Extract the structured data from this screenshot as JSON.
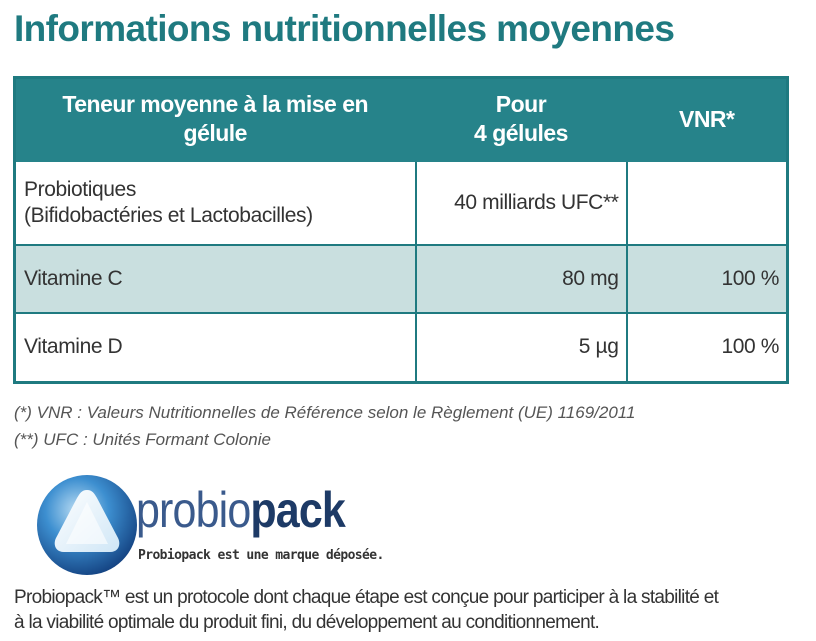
{
  "title": "Informations nutritionnelles moyennes",
  "table": {
    "headers": [
      [
        "Teneur moyenne à la mise en",
        "gélule"
      ],
      [
        "Pour",
        "4 gélules"
      ],
      [
        "VNR*"
      ]
    ],
    "rows": [
      {
        "name_lines": [
          "Probiotiques",
          "(Bifidobactéries et Lactobacilles)"
        ],
        "amount": "40 milliards UFC**",
        "vnr": ""
      },
      {
        "name_lines": [
          "Vitamine C"
        ],
        "amount": "80 mg",
        "vnr": "100 %"
      },
      {
        "name_lines": [
          "Vitamine D"
        ],
        "amount": "5 µg",
        "vnr": "100 %"
      }
    ],
    "colors": {
      "border": "#1f7a80",
      "header_bg": "#26838a",
      "highlight_row": "#c9dfdf"
    }
  },
  "footnotes": [
    "(*) VNR : Valeurs Nutritionnelles de Référence selon le Règlement (UE) 1169/2011",
    "(**) UFC : Unités Formant Colonie"
  ],
  "brand": {
    "name_part1": "probio",
    "name_part2": "pack",
    "tagline": "Probiopack est une marque déposée.",
    "logo_icon": "triangle-ring-logo-icon"
  },
  "description": [
    "Probiopack™ est un protocole dont chaque étape est conçue pour participer à la stabilité et",
    "à la viabilité optimale du produit fini, du développement au conditionnement."
  ]
}
